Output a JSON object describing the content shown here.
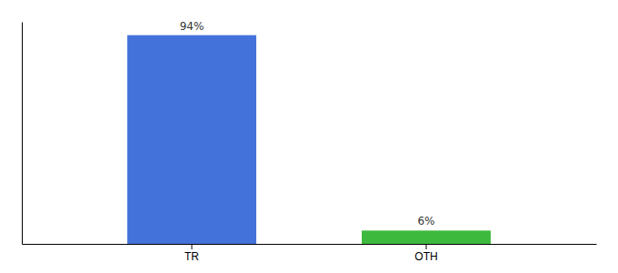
{
  "chart_data": {
    "type": "bar",
    "categories": [
      "TR",
      "OTH"
    ],
    "values": [
      94,
      6
    ],
    "value_labels": [
      "94%",
      "6%"
    ],
    "colors": [
      "#4472db",
      "#3db93d"
    ],
    "ylim": [
      0,
      100
    ],
    "data_labels": true,
    "tick_labels": "x"
  }
}
